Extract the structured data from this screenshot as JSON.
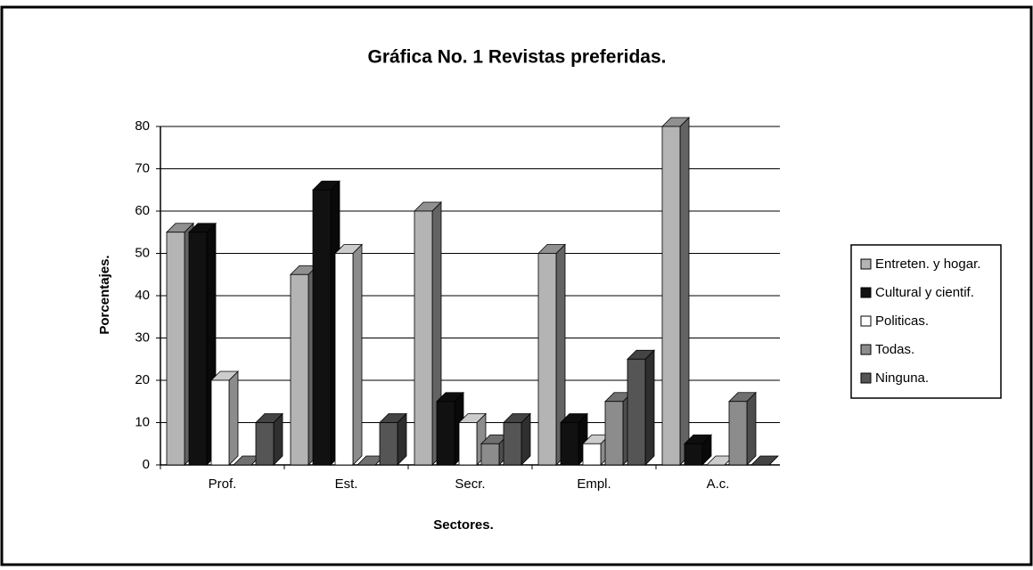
{
  "chart_data": {
    "type": "bar",
    "title": "Gráfica No. 1  Revistas preferidas.",
    "x_label": "Sectores.",
    "y_label": "Porcentajes.",
    "categories": [
      "Prof.",
      "Est.",
      "Secr.",
      "Empl.",
      "A.c."
    ],
    "series": [
      {
        "name": "Entreten. y hogar.",
        "color": "#b4b4b4",
        "values": [
          55,
          45,
          60,
          50,
          80
        ]
      },
      {
        "name": "Cultural y cientif.",
        "color": "#111111",
        "values": [
          55,
          65,
          15,
          10,
          5
        ]
      },
      {
        "name": "Politicas.",
        "color": "#ffffff",
        "values": [
          20,
          50,
          10,
          5,
          0
        ]
      },
      {
        "name": "Todas.",
        "color": "#8c8c8c",
        "values": [
          0,
          0,
          5,
          15,
          15
        ]
      },
      {
        "name": "Ninguna.",
        "color": "#555555",
        "values": [
          10,
          10,
          10,
          25,
          0
        ]
      }
    ],
    "ylim": [
      0,
      80
    ],
    "yticks": [
      0,
      10,
      20,
      30,
      40,
      50,
      60,
      70,
      80
    ],
    "grid": true,
    "legend": "right"
  }
}
